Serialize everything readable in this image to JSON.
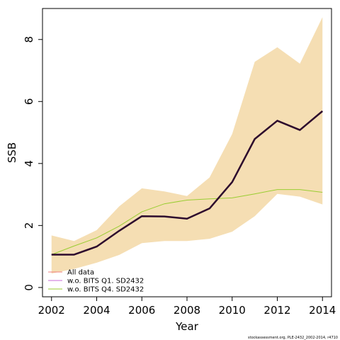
{
  "chart_data": {
    "type": "line",
    "xlabel": "Year",
    "ylabel": "SSB",
    "xlim": [
      2001.6,
      2014.4
    ],
    "ylim": [
      -0.3,
      9.0
    ],
    "x_ticks": [
      2002,
      2004,
      2006,
      2008,
      2010,
      2012,
      2014
    ],
    "y_ticks": [
      0,
      2,
      4,
      6,
      8
    ],
    "grid": false,
    "legend_position": "bottom-left",
    "x": [
      2002,
      2003,
      2004,
      2005,
      2006,
      2007,
      2008,
      2009,
      2010,
      2011,
      2012,
      2013,
      2014
    ],
    "confidence_band": {
      "color": "#f5deb3",
      "lower": [
        0.45,
        0.6,
        0.8,
        1.05,
        1.43,
        1.5,
        1.5,
        1.57,
        1.8,
        2.3,
        3.02,
        2.93,
        2.68
      ],
      "upper": [
        1.68,
        1.5,
        1.85,
        2.62,
        3.2,
        3.1,
        2.95,
        3.55,
        4.95,
        7.28,
        7.75,
        7.22,
        8.72
      ]
    },
    "series": [
      {
        "name": "All data",
        "color": "#f08080",
        "values": [
          1.06,
          1.06,
          1.32,
          1.83,
          2.3,
          2.29,
          2.22,
          2.55,
          3.4,
          4.79,
          5.38,
          5.08,
          5.69
        ]
      },
      {
        "name": "w.o. BITS Q1. SD2432",
        "color": "#c86dd7",
        "values": [
          1.06,
          1.06,
          1.32,
          1.83,
          2.3,
          2.29,
          2.22,
          2.55,
          3.4,
          4.79,
          5.38,
          5.08,
          5.69
        ]
      },
      {
        "name": "w.o. BITS Q4. SD2432",
        "color": "#9acd32",
        "values": [
          1.06,
          1.34,
          1.6,
          1.98,
          2.44,
          2.7,
          2.82,
          2.86,
          2.89,
          3.02,
          3.16,
          3.16,
          3.07
        ]
      }
    ],
    "base_line": {
      "color": "#2d0a2d",
      "values": [
        1.06,
        1.06,
        1.32,
        1.83,
        2.3,
        2.29,
        2.22,
        2.55,
        3.4,
        4.79,
        5.38,
        5.08,
        5.69
      ]
    }
  },
  "credit": "stockassessment.org, PLE-2432_2002-2014, r4710"
}
